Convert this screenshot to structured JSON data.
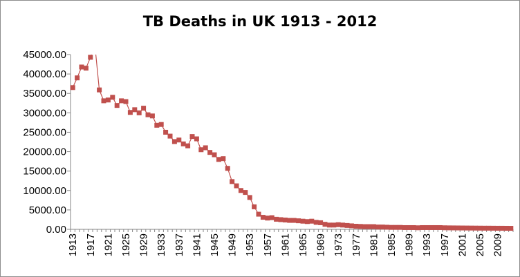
{
  "chart_data": {
    "type": "line",
    "title": "TB Deaths in UK 1913 - 2012",
    "xlabel": "",
    "ylabel": "",
    "ylim": [
      0,
      45000
    ],
    "y_ticks": [
      "0.00",
      "5000.00",
      "10000.00",
      "15000.00",
      "20000.00",
      "25000.00",
      "30000.00",
      "35000.00",
      "40000.00",
      "45000.00"
    ],
    "x_tick_labels": [
      "1913",
      "1917",
      "1921",
      "1925",
      "1929",
      "1933",
      "1937",
      "1941",
      "1945",
      "1949",
      "1953",
      "1957",
      "1961",
      "1965",
      "1969",
      "1973",
      "1977",
      "1981",
      "1985",
      "1989",
      "1993",
      "1997",
      "2001",
      "2005",
      "2009"
    ],
    "x": [
      1913,
      1914,
      1915,
      1916,
      1917,
      1918,
      1919,
      1920,
      1921,
      1922,
      1923,
      1924,
      1925,
      1926,
      1927,
      1928,
      1929,
      1930,
      1931,
      1932,
      1933,
      1934,
      1935,
      1936,
      1937,
      1938,
      1939,
      1940,
      1941,
      1942,
      1943,
      1944,
      1945,
      1946,
      1947,
      1948,
      1949,
      1950,
      1951,
      1952,
      1953,
      1954,
      1955,
      1956,
      1957,
      1958,
      1959,
      1960,
      1961,
      1962,
      1963,
      1964,
      1965,
      1966,
      1967,
      1968,
      1969,
      1970,
      1971,
      1972,
      1973,
      1974,
      1975,
      1976,
      1977,
      1978,
      1979,
      1980,
      1981,
      1982,
      1983,
      1984,
      1985,
      1986,
      1987,
      1988,
      1989,
      1990,
      1991,
      1992,
      1993,
      1994,
      1995,
      1996,
      1997,
      1998,
      1999,
      2000,
      2001,
      2002,
      2003,
      2004,
      2005,
      2006,
      2007,
      2008,
      2009,
      2010,
      2011,
      2012
    ],
    "series": [
      {
        "name": "",
        "color": "#c0504d",
        "values": [
          36500,
          39000,
          41800,
          41500,
          44300,
          47500,
          35900,
          33100,
          33300,
          34000,
          31900,
          33100,
          32900,
          30100,
          30800,
          30000,
          31200,
          29500,
          29200,
          26800,
          27000,
          25000,
          24000,
          22600,
          23000,
          22000,
          21500,
          23900,
          23300,
          20500,
          21000,
          19800,
          19200,
          18000,
          18200,
          15700,
          12300,
          11200,
          10000,
          9500,
          8200,
          5800,
          3900,
          3100,
          2900,
          3000,
          2600,
          2500,
          2400,
          2300,
          2300,
          2200,
          2100,
          2000,
          2100,
          1800,
          1700,
          1300,
          1100,
          1100,
          1200,
          1100,
          1000,
          900,
          800,
          750,
          700,
          700,
          700,
          600,
          600,
          550,
          500,
          500,
          500,
          450,
          450,
          450,
          400,
          450,
          450,
          450,
          450,
          450,
          400,
          380,
          370,
          360,
          350,
          340,
          330,
          320,
          310,
          300,
          300,
          290,
          280,
          280,
          270,
          260
        ]
      }
    ]
  }
}
